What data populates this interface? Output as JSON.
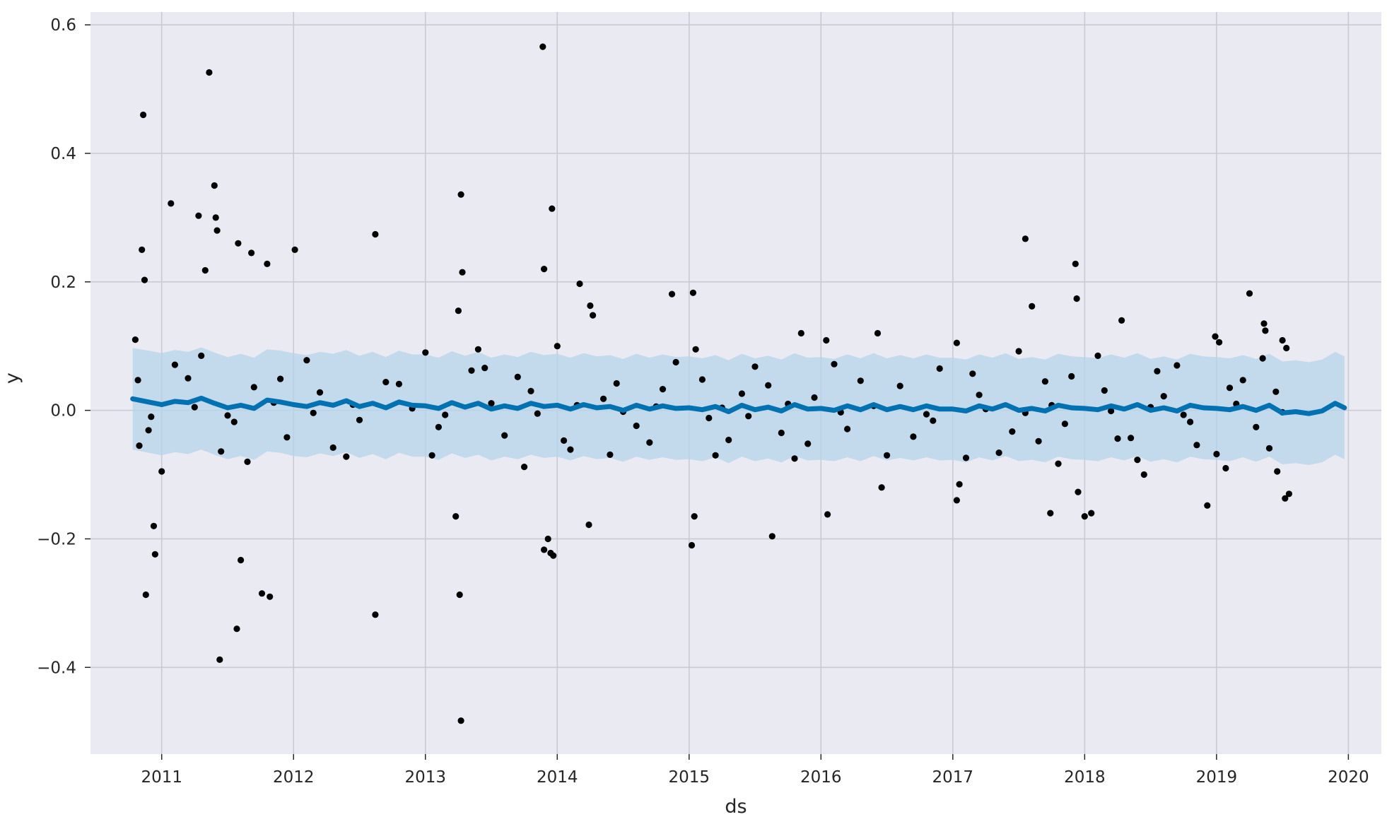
{
  "chart_data": {
    "type": "scatter",
    "title": "",
    "xlabel": "ds",
    "ylabel": "y",
    "xlim": [
      2010.46,
      2020.25
    ],
    "ylim": [
      -0.535,
      0.62
    ],
    "x_ticks": [
      2011,
      2012,
      2013,
      2014,
      2015,
      2016,
      2017,
      2018,
      2019,
      2020
    ],
    "x_tick_labels": [
      "2011",
      "2012",
      "2013",
      "2014",
      "2015",
      "2016",
      "2017",
      "2018",
      "2019",
      "2020"
    ],
    "y_ticks": [
      0.6,
      0.4,
      0.2,
      0.0,
      -0.2,
      -0.4
    ],
    "y_tick_labels": [
      "0.6",
      "0.4",
      "0.2",
      "0.0",
      "−0.2",
      "−0.4"
    ],
    "grid": true,
    "legend": "none",
    "colors": {
      "plot_background": "#eaeaf2",
      "grid": "#c9cad3",
      "observed_points": "#000000",
      "forecast_line": "#0072b2",
      "uncertainty_band": "#b6d3ea"
    },
    "series": [
      {
        "name": "",
        "role": "forecast",
        "x": [
          2010.78,
          2010.9,
          2011.0,
          2011.1,
          2011.2,
          2011.3,
          2011.4,
          2011.5,
          2011.6,
          2011.7,
          2011.8,
          2011.9,
          2012.0,
          2012.1,
          2012.2,
          2012.3,
          2012.4,
          2012.5,
          2012.6,
          2012.7,
          2012.8,
          2012.9,
          2013.0,
          2013.1,
          2013.2,
          2013.3,
          2013.4,
          2013.5,
          2013.6,
          2013.7,
          2013.8,
          2013.9,
          2014.0,
          2014.1,
          2014.2,
          2014.3,
          2014.4,
          2014.5,
          2014.6,
          2014.7,
          2014.8,
          2014.9,
          2015.0,
          2015.1,
          2015.2,
          2015.3,
          2015.4,
          2015.5,
          2015.6,
          2015.7,
          2015.8,
          2015.9,
          2016.0,
          2016.1,
          2016.2,
          2016.3,
          2016.4,
          2016.5,
          2016.6,
          2016.7,
          2016.8,
          2016.9,
          2017.0,
          2017.1,
          2017.2,
          2017.3,
          2017.4,
          2017.5,
          2017.6,
          2017.7,
          2017.8,
          2017.9,
          2018.0,
          2018.1,
          2018.2,
          2018.3,
          2018.4,
          2018.5,
          2018.6,
          2018.7,
          2018.8,
          2018.9,
          2019.0,
          2019.1,
          2019.2,
          2019.3,
          2019.4,
          2019.5,
          2019.6,
          2019.7,
          2019.8,
          2019.9,
          2019.97
        ],
        "yhat": [
          0.018,
          0.013,
          0.009,
          0.014,
          0.012,
          0.019,
          0.011,
          0.004,
          0.008,
          0.003,
          0.016,
          0.013,
          0.009,
          0.006,
          0.012,
          0.008,
          0.015,
          0.006,
          0.011,
          0.004,
          0.013,
          0.008,
          0.007,
          0.003,
          0.012,
          0.005,
          0.011,
          0.002,
          0.007,
          0.003,
          0.011,
          0.006,
          0.008,
          0.002,
          0.009,
          0.004,
          0.006,
          0.0,
          0.008,
          0.002,
          0.007,
          0.003,
          0.004,
          0.001,
          0.006,
          -0.002,
          0.008,
          0.001,
          0.005,
          -0.001,
          0.009,
          0.002,
          0.003,
          0.0,
          0.007,
          0.001,
          0.009,
          0.001,
          0.006,
          0.001,
          0.007,
          0.002,
          0.002,
          -0.001,
          0.007,
          0.002,
          0.009,
          0.0,
          0.003,
          -0.001,
          0.008,
          0.004,
          0.003,
          0.001,
          0.007,
          0.002,
          0.009,
          0.0,
          0.004,
          -0.001,
          0.008,
          0.004,
          0.003,
          0.001,
          0.006,
          0.0,
          0.008,
          -0.004,
          -0.002,
          -0.005,
          -0.001,
          0.011,
          0.004
        ],
        "yhat_lower": [
          -0.061,
          -0.066,
          -0.07,
          -0.065,
          -0.068,
          -0.061,
          -0.069,
          -0.076,
          -0.071,
          -0.077,
          -0.064,
          -0.066,
          -0.071,
          -0.073,
          -0.067,
          -0.071,
          -0.065,
          -0.074,
          -0.068,
          -0.076,
          -0.066,
          -0.072,
          -0.072,
          -0.077,
          -0.067,
          -0.074,
          -0.069,
          -0.078,
          -0.072,
          -0.076,
          -0.069,
          -0.074,
          -0.072,
          -0.078,
          -0.071,
          -0.076,
          -0.074,
          -0.08,
          -0.072,
          -0.077,
          -0.073,
          -0.077,
          -0.076,
          -0.079,
          -0.073,
          -0.082,
          -0.072,
          -0.079,
          -0.075,
          -0.081,
          -0.071,
          -0.078,
          -0.077,
          -0.079,
          -0.073,
          -0.079,
          -0.071,
          -0.078,
          -0.074,
          -0.078,
          -0.073,
          -0.078,
          -0.077,
          -0.081,
          -0.073,
          -0.078,
          -0.071,
          -0.079,
          -0.077,
          -0.081,
          -0.072,
          -0.076,
          -0.077,
          -0.079,
          -0.073,
          -0.078,
          -0.071,
          -0.08,
          -0.076,
          -0.081,
          -0.072,
          -0.076,
          -0.077,
          -0.079,
          -0.073,
          -0.08,
          -0.072,
          -0.084,
          -0.082,
          -0.085,
          -0.081,
          -0.069,
          -0.076
        ],
        "yhat_upper": [
          0.097,
          0.093,
          0.089,
          0.094,
          0.091,
          0.098,
          0.09,
          0.083,
          0.088,
          0.082,
          0.095,
          0.093,
          0.089,
          0.086,
          0.091,
          0.088,
          0.094,
          0.085,
          0.091,
          0.083,
          0.093,
          0.087,
          0.087,
          0.082,
          0.092,
          0.085,
          0.091,
          0.082,
          0.087,
          0.083,
          0.091,
          0.086,
          0.088,
          0.082,
          0.089,
          0.084,
          0.086,
          0.08,
          0.088,
          0.082,
          0.087,
          0.083,
          0.084,
          0.081,
          0.086,
          0.078,
          0.088,
          0.081,
          0.085,
          0.079,
          0.089,
          0.082,
          0.083,
          0.08,
          0.087,
          0.081,
          0.089,
          0.081,
          0.086,
          0.081,
          0.087,
          0.082,
          0.082,
          0.079,
          0.087,
          0.082,
          0.089,
          0.08,
          0.083,
          0.079,
          0.088,
          0.084,
          0.083,
          0.081,
          0.087,
          0.082,
          0.089,
          0.08,
          0.084,
          0.079,
          0.088,
          0.084,
          0.083,
          0.081,
          0.086,
          0.08,
          0.088,
          0.076,
          0.078,
          0.075,
          0.079,
          0.091,
          0.084
        ]
      },
      {
        "name": "",
        "role": "observed",
        "x": [
          2010.86,
          2010.87,
          2010.85,
          2011.36,
          2011.4,
          2011.42,
          2011.07,
          2011.58,
          2011.68,
          2011.8,
          2012.01,
          2011.28,
          2011.33,
          2011.41,
          2012.62,
          2013.27,
          2013.28,
          2013.89,
          2013.96,
          2013.25,
          2013.9,
          2014.17,
          2014.25,
          2014.27,
          2014.87,
          2015.03,
          2015.05,
          2015.85,
          2016.04,
          2016.43,
          2017.03,
          2017.55,
          2017.93,
          2017.94,
          2017.6,
          2018.28,
          2018.99,
          2019.02,
          2019.25,
          2019.36,
          2019.37,
          2019.5,
          2019.53,
          2010.88,
          2010.95,
          2010.94,
          2011.6,
          2011.57,
          2011.44,
          2011.76,
          2011.82,
          2012.62,
          2013.26,
          2013.27,
          2013.23,
          2013.9,
          2013.95,
          2013.97,
          2013.93,
          2014.24,
          2015.02,
          2015.04,
          2015.63,
          2016.05,
          2016.46,
          2017.03,
          2017.05,
          2017.74,
          2017.95,
          2018.0,
          2018.05,
          2018.45,
          2018.93,
          2019.07,
          2019.46,
          2019.55,
          2019.52,
          2010.82,
          2010.9,
          2011.2,
          2011.55,
          2011.7,
          2011.95,
          2012.2,
          2012.5,
          2012.8,
          2013.1,
          2013.35,
          2013.6,
          2013.8,
          2014.05,
          2014.35,
          2014.6,
          2014.8,
          2015.15,
          2015.4,
          2015.7,
          2015.95,
          2016.2,
          2016.6,
          2016.85,
          2017.2,
          2017.45,
          2017.7,
          2017.85,
          2018.15,
          2018.35,
          2018.6,
          2018.8,
          2019.1,
          2019.3,
          2019.45,
          2010.83,
          2011.1,
          2011.45,
          2011.9,
          2012.3,
          2012.7,
          2013.05,
          2013.45,
          2013.7,
          2014.1,
          2014.45,
          2014.7,
          2015.1,
          2015.3,
          2015.6,
          2015.9,
          2016.3,
          2016.7,
          2017.15,
          2017.35,
          2017.65,
          2017.9,
          2018.25,
          2018.55,
          2018.85,
          2019.2,
          2019.4,
          2010.8,
          2011.0,
          2011.3,
          2011.65,
          2012.1,
          2012.4,
          2013.0,
          2013.4,
          2013.75,
          2014.0,
          2014.4,
          2014.9,
          2015.2,
          2015.5,
          2015.8,
          2016.1,
          2016.5,
          2016.9,
          2017.1,
          2017.5,
          2017.8,
          2018.1,
          2018.4,
          2018.7,
          2019.0,
          2019.35,
          2010.92,
          2011.25,
          2011.5,
          2011.85,
          2012.15,
          2012.45,
          2012.9,
          2013.15,
          2013.5,
          2013.85,
          2014.15,
          2014.5,
          2014.75,
          2015.25,
          2015.45,
          2015.75,
          2016.15,
          2016.4,
          2016.8,
          2017.25,
          2017.55,
          2017.75,
          2018.2,
          2018.5,
          2018.75,
          2019.15,
          2019.5
        ],
        "y": [
          0.46,
          0.203,
          0.25,
          0.526,
          0.35,
          0.28,
          0.322,
          0.26,
          0.245,
          0.228,
          0.25,
          0.303,
          0.218,
          0.3,
          0.274,
          0.336,
          0.215,
          0.566,
          0.314,
          0.155,
          0.22,
          0.197,
          0.163,
          0.148,
          0.181,
          0.183,
          0.095,
          0.12,
          0.109,
          0.12,
          0.105,
          0.267,
          0.228,
          0.174,
          0.162,
          0.14,
          0.115,
          0.106,
          0.182,
          0.135,
          0.124,
          0.109,
          0.097,
          -0.287,
          -0.224,
          -0.18,
          -0.233,
          -0.34,
          -0.388,
          -0.285,
          -0.29,
          -0.318,
          -0.287,
          -0.483,
          -0.165,
          -0.217,
          -0.222,
          -0.226,
          -0.2,
          -0.178,
          -0.21,
          -0.165,
          -0.196,
          -0.162,
          -0.12,
          -0.14,
          -0.115,
          -0.16,
          -0.127,
          -0.165,
          -0.16,
          -0.1,
          -0.148,
          -0.09,
          -0.095,
          -0.13,
          -0.137,
          0.047,
          -0.031,
          0.05,
          -0.018,
          0.036,
          -0.042,
          0.028,
          -0.015,
          0.041,
          -0.026,
          0.062,
          -0.039,
          0.03,
          -0.047,
          0.018,
          -0.024,
          0.033,
          -0.012,
          0.026,
          -0.035,
          0.02,
          -0.029,
          0.038,
          -0.016,
          0.024,
          -0.033,
          0.045,
          -0.021,
          0.031,
          -0.043,
          0.022,
          -0.018,
          0.035,
          -0.026,
          0.029,
          -0.055,
          0.071,
          -0.064,
          0.049,
          -0.058,
          0.044,
          -0.07,
          0.066,
          0.052,
          -0.061,
          0.042,
          -0.05,
          0.048,
          -0.046,
          0.039,
          -0.052,
          0.046,
          -0.041,
          0.057,
          -0.066,
          -0.048,
          0.053,
          -0.044,
          0.061,
          -0.054,
          0.047,
          -0.059,
          0.11,
          -0.095,
          0.085,
          -0.08,
          0.078,
          -0.072,
          0.09,
          0.095,
          -0.088,
          0.1,
          -0.069,
          0.075,
          -0.07,
          0.068,
          -0.075,
          0.072,
          -0.07,
          0.065,
          -0.074,
          0.092,
          -0.083,
          0.085,
          -0.077,
          0.07,
          -0.068,
          0.081,
          -0.01,
          0.005,
          -0.008,
          0.012,
          -0.004,
          0.009,
          0.003,
          -0.007,
          0.011,
          -0.005,
          0.008,
          -0.002,
          0.006,
          0.004,
          -0.009,
          0.01,
          -0.003,
          0.007,
          -0.006,
          0.002,
          -0.004,
          0.008,
          -0.001,
          0.005,
          -0.007,
          0.01,
          -0.003
        ]
      }
    ]
  }
}
